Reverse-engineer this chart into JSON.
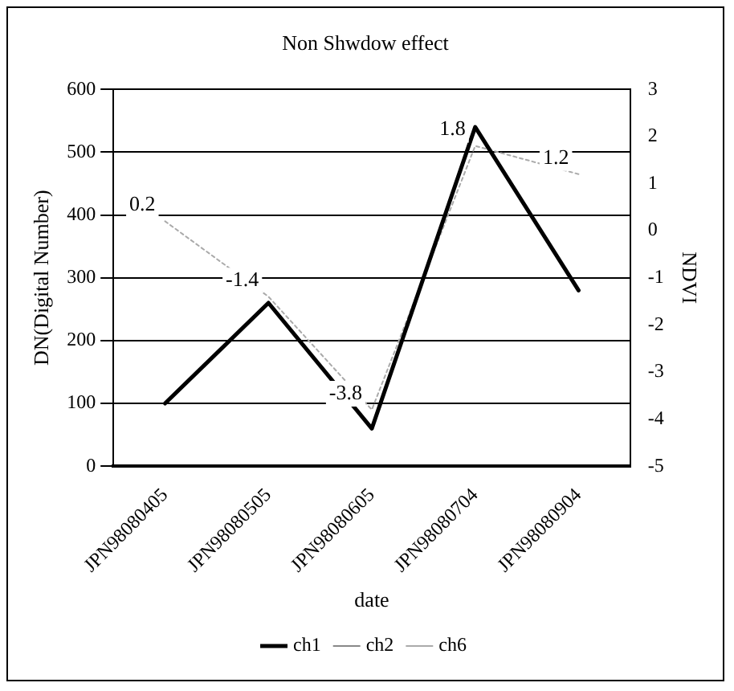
{
  "chart_data": {
    "type": "line",
    "title": "Non Shwdow effect",
    "xlabel": "date",
    "ylabel": "DN(Digital Number)",
    "y2label": "NDVI",
    "categories": [
      "JPN98080405",
      "JPN98080505",
      "JPN98080605",
      "JPN98080704",
      "JPN98080904"
    ],
    "series": [
      {
        "name": "ch1",
        "color": "#000000",
        "values": [
          100,
          260,
          60,
          540,
          280
        ]
      },
      {
        "name": "ch2",
        "color": "#888888",
        "line_style": "dotted",
        "values": [
          null,
          null,
          null,
          null,
          null
        ]
      },
      {
        "name": "ch6",
        "color": "#aaaaaa",
        "line_style": "dotted",
        "axis": "y2",
        "values": [
          0.2,
          -1.4,
          -3.8,
          1.8,
          1.2
        ],
        "value_labels": [
          "0.2",
          "-1.4",
          "-3.8",
          "1.8",
          "1.2"
        ]
      }
    ],
    "ylim": [
      0,
      600
    ],
    "yticks": [
      0,
      100,
      200,
      300,
      400,
      500,
      600
    ],
    "y2lim": [
      -5,
      3
    ],
    "y2ticks": [
      -5,
      -4,
      -3,
      -2,
      -1,
      0,
      1,
      2,
      3
    ],
    "grid": "y",
    "legend": "bottom",
    "marker": "none",
    "line_style": "solid"
  }
}
